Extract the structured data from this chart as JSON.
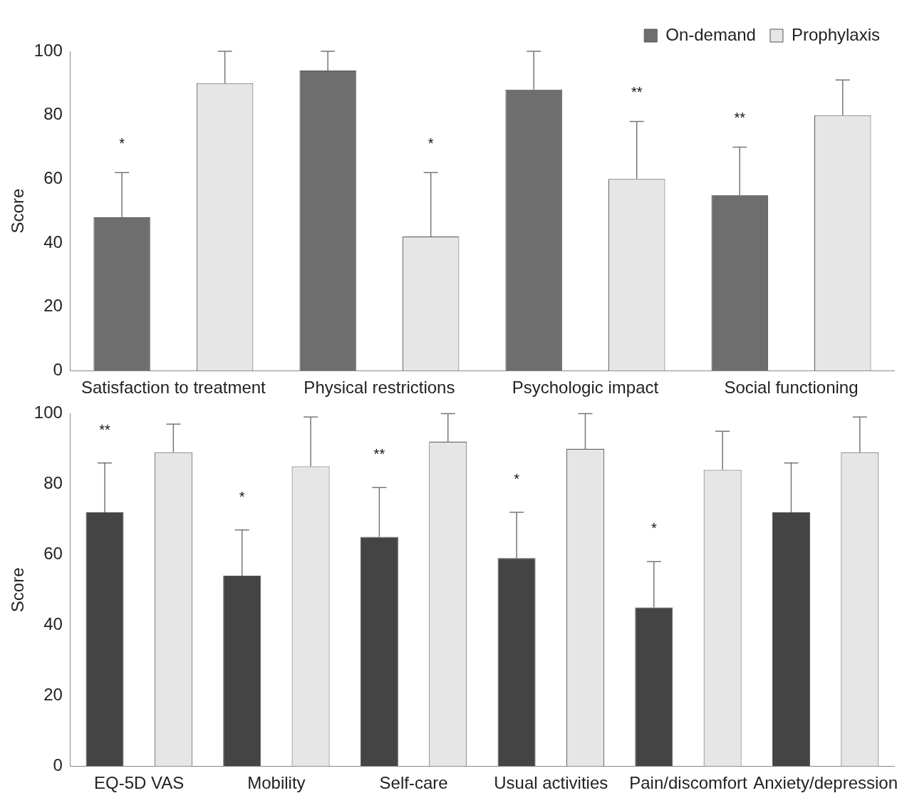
{
  "chart_data": [
    {
      "type": "bar",
      "ylabel": "Score",
      "categories": [
        "Satisfaction to treatment",
        "Physical restrictions",
        "Psychologic impact",
        "Social functioning"
      ],
      "ylim": [
        0,
        100
      ],
      "yticks": [
        0,
        20,
        40,
        60,
        80,
        100
      ],
      "grid": false,
      "legend": "top",
      "series": [
        {
          "name": "On-demand",
          "color": "#6e6e6e",
          "values": [
            48,
            94,
            88,
            55
          ],
          "errors": [
            [
              48,
              62
            ],
            [
              94,
              100
            ],
            [
              88,
              100
            ],
            [
              55,
              70
            ]
          ]
        },
        {
          "name": "Prophylaxis",
          "color": "#e6e6e6",
          "values": [
            90,
            42,
            60,
            80
          ],
          "errors": [
            [
              90,
              100
            ],
            [
              42,
              62
            ],
            [
              60,
              78
            ],
            [
              80,
              91
            ]
          ]
        }
      ],
      "annotations": [
        "*",
        "*",
        "**",
        "**"
      ]
    },
    {
      "type": "bar",
      "ylabel": "Score",
      "categories": [
        "EQ-5D VAS",
        "Mobility",
        "Self-care",
        "Usual activities",
        "Pain/discomfort",
        "Anxiety/depression"
      ],
      "ylim": [
        0,
        100
      ],
      "yticks": [
        0,
        20,
        40,
        60,
        80,
        100
      ],
      "grid": false,
      "series": [
        {
          "color": "#444444",
          "values": [
            72,
            54,
            65,
            59,
            45,
            72
          ],
          "errors": [
            [
              72,
              86
            ],
            [
              54,
              67
            ],
            [
              65,
              79
            ],
            [
              59,
              72
            ],
            [
              45,
              58
            ],
            [
              72,
              86
            ]
          ]
        },
        {
          "color": "#e6e6e6",
          "values": [
            89,
            85,
            92,
            90,
            84,
            89
          ],
          "errors": [
            [
              89,
              97
            ],
            [
              85,
              99
            ],
            [
              92,
              100
            ],
            [
              90,
              100
            ],
            [
              84,
              95
            ],
            [
              89,
              99
            ]
          ]
        }
      ],
      "annotations": [
        "**",
        "*",
        "**",
        "*",
        "*"
      ]
    }
  ]
}
